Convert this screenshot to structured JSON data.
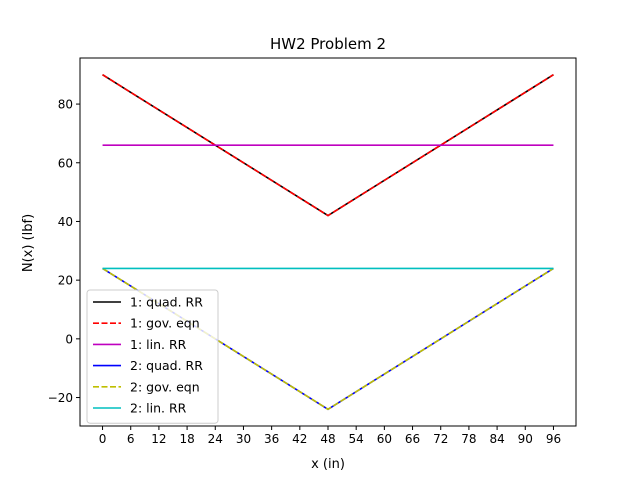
{
  "chart_data": {
    "type": "line",
    "title": "HW2 Problem 2",
    "xlabel": "x (in)",
    "ylabel": "N(x) (lbf)",
    "xlim": [
      -4.8,
      100.8
    ],
    "ylim": [
      -29.7,
      95.7
    ],
    "xticks": [
      0,
      6,
      12,
      18,
      24,
      30,
      36,
      42,
      48,
      54,
      60,
      66,
      72,
      78,
      84,
      90,
      96
    ],
    "yticks": [
      -20,
      0,
      20,
      40,
      60,
      80
    ],
    "grid": false,
    "legend_position": "lower-left",
    "series": [
      {
        "name": "1: quad. RR",
        "color": "#000000",
        "dash": "solid",
        "x": [
          0,
          48,
          96
        ],
        "y": [
          90,
          42,
          90
        ]
      },
      {
        "name": "1: gov. eqn",
        "color": "#ff0000",
        "dash": "dashed",
        "x": [
          0,
          48,
          96
        ],
        "y": [
          90,
          42,
          90
        ]
      },
      {
        "name": "1: lin. RR",
        "color": "#bf00bf",
        "dash": "solid",
        "x": [
          0,
          96
        ],
        "y": [
          66,
          66
        ]
      },
      {
        "name": "2: quad. RR",
        "color": "#0000ff",
        "dash": "solid",
        "x": [
          0,
          48,
          96
        ],
        "y": [
          24,
          -24,
          24
        ]
      },
      {
        "name": "2: gov. eqn",
        "color": "#bfbf00",
        "dash": "dashed",
        "x": [
          0,
          48,
          96
        ],
        "y": [
          24,
          -24,
          24
        ]
      },
      {
        "name": "2: lin. RR",
        "color": "#00bfbf",
        "dash": "solid",
        "x": [
          0,
          96
        ],
        "y": [
          24,
          24
        ]
      }
    ]
  }
}
